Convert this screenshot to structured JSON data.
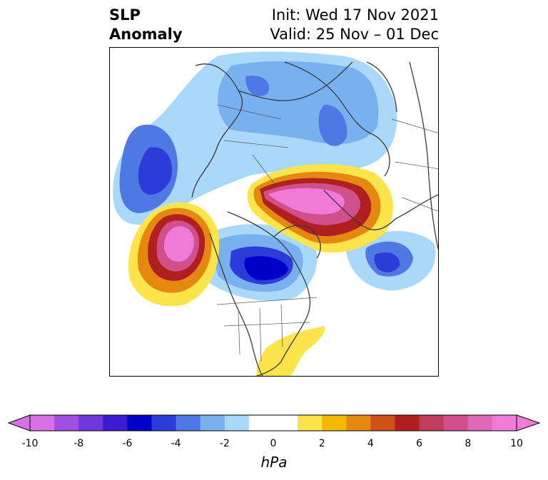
{
  "title": {
    "variable": "SLP",
    "subtitle": "Anomaly",
    "init": "Init: Wed 17 Nov 2021",
    "valid": "Valid: 25 Nov – 01 Dec"
  },
  "colorbar": {
    "unit": "hPa",
    "ticks": [
      "-10",
      "-8",
      "-6",
      "-4",
      "-2",
      "0",
      "2",
      "4",
      "6",
      "8",
      "10"
    ],
    "colors": [
      "#d870e8",
      "#a050e0",
      "#7038d8",
      "#3c1cd0",
      "#0000c8",
      "#2c3cd8",
      "#5078e4",
      "#78b0f0",
      "#aad8f8",
      "#ffffff",
      "#ffffff",
      "#fce44c",
      "#f4b800",
      "#e48810",
      "#cc5018",
      "#b02020",
      "#c03c5c",
      "#d0508c",
      "#e068b8",
      "#f07ad8"
    ],
    "under_color": "#d870e8",
    "over_color": "#f07ad8"
  }
}
